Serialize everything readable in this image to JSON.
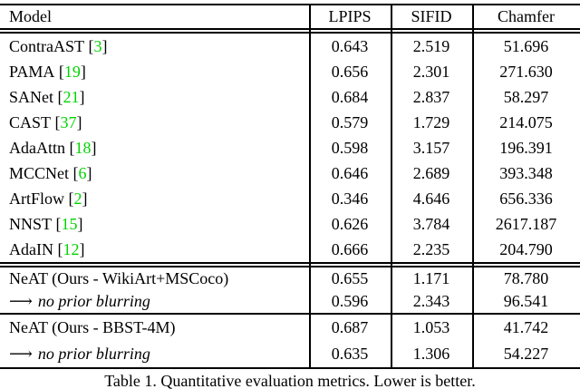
{
  "table": {
    "headers": [
      "Model",
      "LPIPS",
      "SIFID",
      "Chamfer"
    ],
    "sections": [
      {
        "name": "baselines",
        "rows": [
          {
            "model": "ContraAST",
            "cite": "3",
            "values": [
              "0.643",
              "2.519",
              "51.696"
            ]
          },
          {
            "model": "PAMA",
            "cite": "19",
            "values": [
              "0.656",
              "2.301",
              "271.630"
            ]
          },
          {
            "model": "SANet",
            "cite": "21",
            "values": [
              "0.684",
              "2.837",
              "58.297"
            ]
          },
          {
            "model": "CAST",
            "cite": "37",
            "values": [
              "0.579",
              "1.729",
              "214.075"
            ]
          },
          {
            "model": "AdaAttn",
            "cite": "18",
            "values": [
              "0.598",
              "3.157",
              "196.391"
            ]
          },
          {
            "model": "MCCNet",
            "cite": "6",
            "values": [
              "0.646",
              "2.689",
              "393.348"
            ]
          },
          {
            "model": "ArtFlow",
            "cite": "2",
            "values": [
              "0.346",
              "4.646",
              "656.336"
            ]
          },
          {
            "model": "NNST",
            "cite": "15",
            "values": [
              "0.626",
              "3.784",
              "2617.187"
            ]
          },
          {
            "model": "AdaIN",
            "cite": "12",
            "values": [
              "0.666",
              "2.235",
              "204.790"
            ]
          }
        ]
      },
      {
        "name": "neat-wikiart",
        "rows": [
          {
            "model": "NeAT (Ours - WikiArt+MSCoco)",
            "values": [
              "0.655",
              "1.171",
              "78.780"
            ]
          },
          {
            "model": "no prior blurring",
            "arrow": "⟶",
            "italic": true,
            "values": [
              "0.596",
              "2.343",
              "96.541"
            ]
          }
        ]
      },
      {
        "name": "neat-bbst",
        "rows": [
          {
            "model": "NeAT (Ours - BBST-4M)",
            "values": [
              "0.687",
              "1.053",
              "41.742"
            ]
          },
          {
            "model": "no prior blurring",
            "arrow": "⟶",
            "italic": true,
            "values": [
              "0.635",
              "1.306",
              "54.227"
            ]
          }
        ]
      }
    ],
    "bracket_open": "[",
    "bracket_close": "]"
  },
  "caption": "Table 1.  Quantitative evaluation metrics. Lower is better.",
  "colors": {
    "citation_green": "#00d400",
    "text": "#000000",
    "background": "#ffffff",
    "rule": "#000000"
  }
}
